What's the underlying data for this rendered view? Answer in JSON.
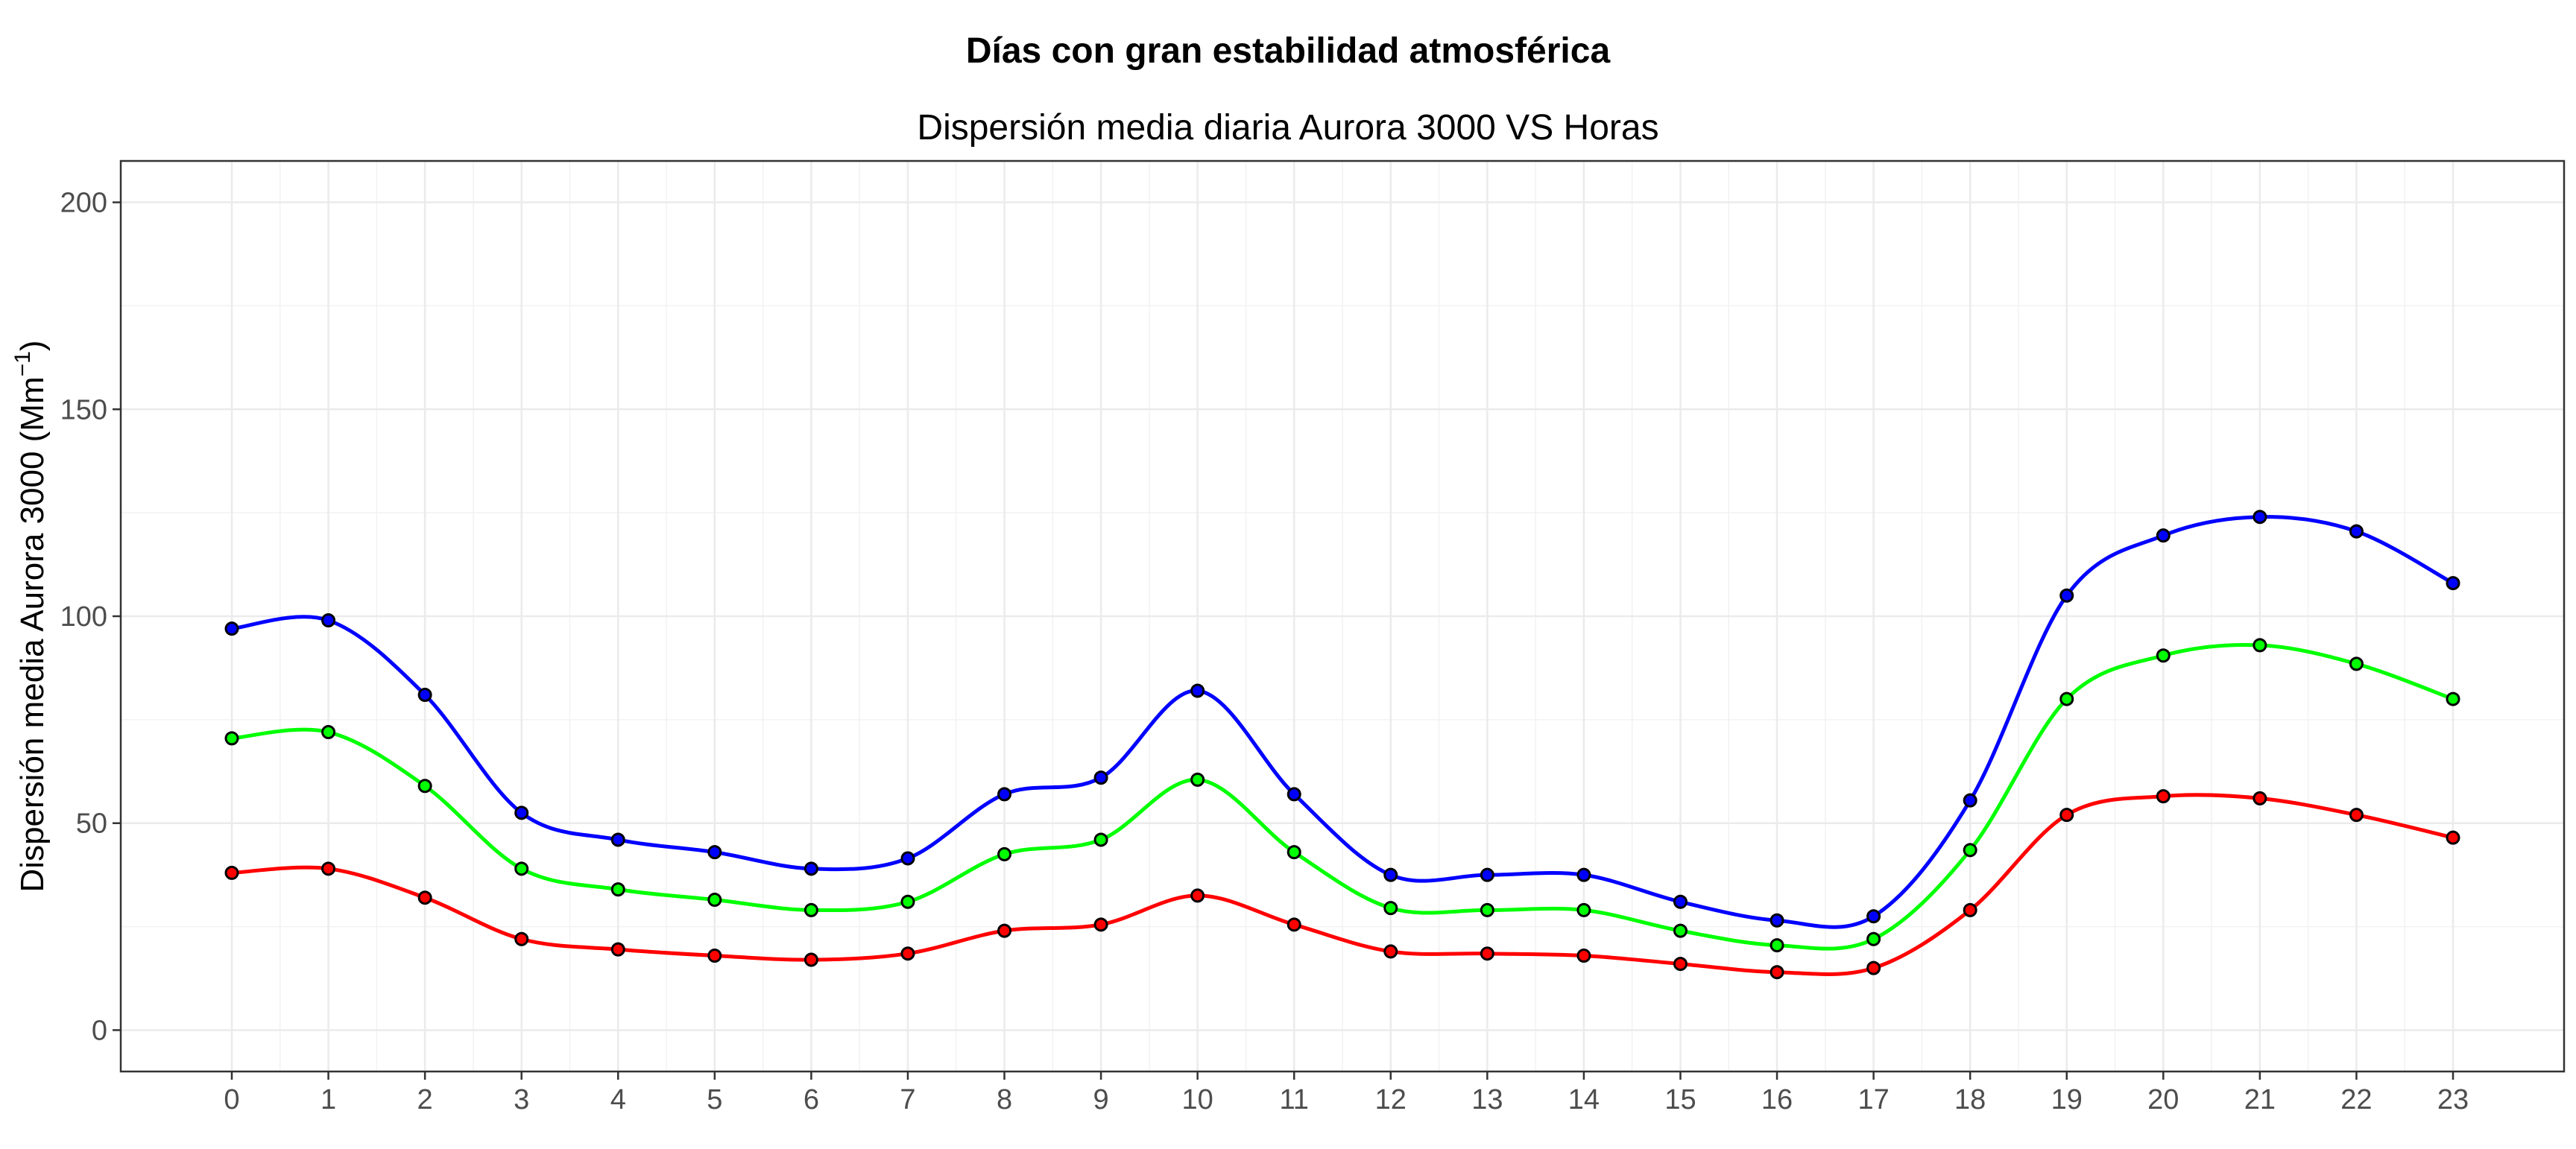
{
  "chart_data": {
    "type": "line",
    "title": "Días con gran estabilidad atmosférica",
    "subtitle": "Dispersión media diaria Aurora 3000 VS Horas",
    "xlabel": "",
    "ylabel": "Dispersión media Aurora 3000 (Mm",
    "ylabel_sup": "−1",
    "ylabel_close": ")",
    "x": [
      0,
      1,
      2,
      3,
      4,
      5,
      6,
      7,
      8,
      9,
      10,
      11,
      12,
      13,
      14,
      15,
      16,
      17,
      18,
      19,
      20,
      21,
      22,
      23
    ],
    "xlim": [
      -1.15,
      24.15
    ],
    "ylim": [
      -10,
      210
    ],
    "yticks": [
      0,
      50,
      100,
      150,
      200
    ],
    "grid": true,
    "legend": "none",
    "series": [
      {
        "color": "#0000ff",
        "values": [
          97,
          99,
          81,
          52.5,
          46,
          43,
          39,
          41.5,
          57,
          61,
          82,
          57,
          37.5,
          37.5,
          37.5,
          31,
          26.5,
          27.5,
          55.5,
          105,
          119.5,
          124,
          120.5,
          108
        ]
      },
      {
        "color": "#00ff00",
        "values": [
          70.5,
          72,
          59,
          39,
          34,
          31.5,
          29,
          31,
          42.5,
          46,
          60.5,
          43,
          29.5,
          29,
          29,
          24,
          20.5,
          22,
          43.5,
          80,
          90.5,
          93,
          88.5,
          80
        ]
      },
      {
        "color": "#ff0000",
        "values": [
          38,
          39,
          32,
          22,
          19.5,
          18,
          17,
          18.5,
          24,
          25.5,
          32.5,
          25.5,
          19,
          18.5,
          18,
          16,
          14,
          15,
          29,
          52,
          56.5,
          56,
          52,
          46.5
        ]
      }
    ]
  }
}
